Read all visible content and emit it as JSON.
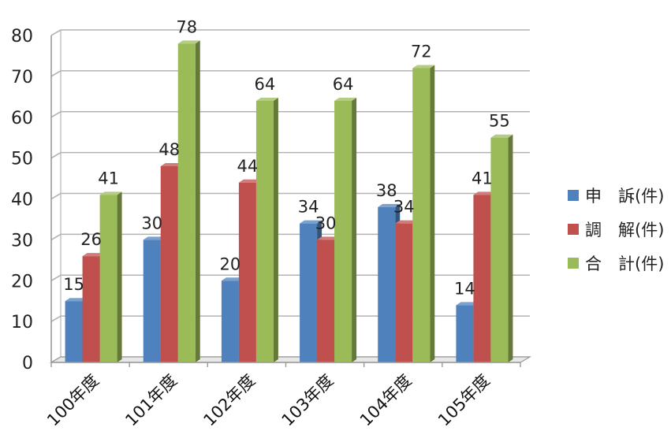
{
  "chart_data": {
    "type": "bar",
    "title": "",
    "xlabel": "",
    "ylabel": "",
    "ylim": [
      0,
      80
    ],
    "yticks": [
      0,
      10,
      20,
      30,
      40,
      50,
      60,
      70,
      80
    ],
    "grid": true,
    "legend_position": "right",
    "categories": [
      "100年度",
      "101年度",
      "102年度",
      "103年度",
      "104年度",
      "105年度"
    ],
    "series": [
      {
        "name": "申　訴(件)",
        "color": "#4f81bd",
        "values": [
          15,
          30,
          20,
          34,
          38,
          14
        ]
      },
      {
        "name": "調　解(件)",
        "color": "#c0504d",
        "values": [
          26,
          48,
          44,
          30,
          34,
          41
        ]
      },
      {
        "name": "合　計(件)",
        "color": "#9bbb59",
        "values": [
          41,
          78,
          64,
          64,
          72,
          55
        ]
      }
    ]
  }
}
